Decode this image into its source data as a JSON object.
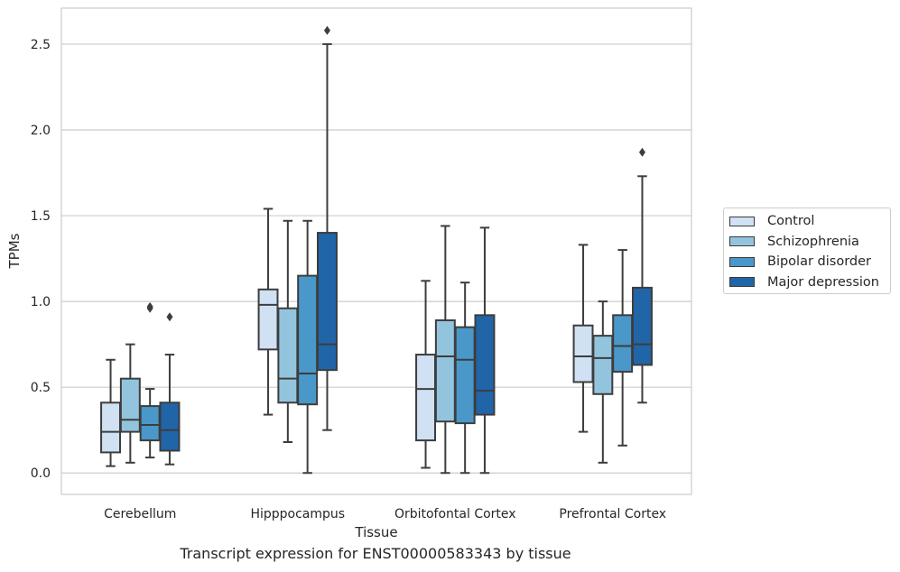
{
  "chart_data": {
    "type": "box",
    "title": "",
    "caption": "Transcript expression for ENST00000583343 by tissue",
    "xlabel": "Tissue",
    "ylabel": "TPMs",
    "ylim": [
      -0.125,
      2.71
    ],
    "yticks": [
      0.0,
      0.5,
      1.0,
      1.5,
      2.0,
      2.5
    ],
    "ytick_labels": [
      "0.0",
      "0.5",
      "1.0",
      "1.5",
      "2.0",
      "2.5"
    ],
    "categories": [
      "Cerebellum",
      "Hipppocampus",
      "Orbitofontal Cortex",
      "Prefrontal Cortex"
    ],
    "grid": "horizontal",
    "legend_position": "right",
    "series": [
      {
        "name": "Control",
        "color": "#cfe1f2",
        "boxes": [
          {
            "whislo": 0.04,
            "q1": 0.12,
            "med": 0.24,
            "q3": 0.41,
            "whishi": 0.66,
            "fliers": []
          },
          {
            "whislo": 0.34,
            "q1": 0.72,
            "med": 0.98,
            "q3": 1.07,
            "whishi": 1.54,
            "fliers": []
          },
          {
            "whislo": 0.03,
            "q1": 0.19,
            "med": 0.49,
            "q3": 0.69,
            "whishi": 1.12,
            "fliers": []
          },
          {
            "whislo": 0.24,
            "q1": 0.53,
            "med": 0.68,
            "q3": 0.86,
            "whishi": 1.33,
            "fliers": []
          }
        ]
      },
      {
        "name": "Schizophrenia",
        "color": "#93c4de",
        "boxes": [
          {
            "whislo": 0.06,
            "q1": 0.24,
            "med": 0.31,
            "q3": 0.55,
            "whishi": 0.75,
            "fliers": []
          },
          {
            "whislo": 0.18,
            "q1": 0.41,
            "med": 0.55,
            "q3": 0.96,
            "whishi": 1.47,
            "fliers": []
          },
          {
            "whislo": 0.0,
            "q1": 0.3,
            "med": 0.68,
            "q3": 0.89,
            "whishi": 1.44,
            "fliers": []
          },
          {
            "whislo": 0.06,
            "q1": 0.46,
            "med": 0.67,
            "q3": 0.8,
            "whishi": 1.0,
            "fliers": []
          }
        ]
      },
      {
        "name": "Bipolar disorder",
        "color": "#4a98c9",
        "boxes": [
          {
            "whislo": 0.09,
            "q1": 0.19,
            "med": 0.28,
            "q3": 0.39,
            "whishi": 0.49,
            "fliers": [
              0.96,
              0.97
            ]
          },
          {
            "whislo": 0.0,
            "q1": 0.4,
            "med": 0.58,
            "q3": 1.15,
            "whishi": 1.47,
            "fliers": []
          },
          {
            "whislo": 0.0,
            "q1": 0.29,
            "med": 0.66,
            "q3": 0.85,
            "whishi": 1.11,
            "fliers": []
          },
          {
            "whislo": 0.16,
            "q1": 0.59,
            "med": 0.74,
            "q3": 0.92,
            "whishi": 1.3,
            "fliers": []
          }
        ]
      },
      {
        "name": "Major depression",
        "color": "#2165a9",
        "boxes": [
          {
            "whislo": 0.05,
            "q1": 0.13,
            "med": 0.25,
            "q3": 0.41,
            "whishi": 0.69,
            "fliers": [
              0.91
            ]
          },
          {
            "whislo": 0.25,
            "q1": 0.6,
            "med": 0.75,
            "q3": 1.4,
            "whishi": 2.5,
            "fliers": [
              2.58
            ]
          },
          {
            "whislo": 0.0,
            "q1": 0.34,
            "med": 0.48,
            "q3": 0.92,
            "whishi": 1.43,
            "fliers": []
          },
          {
            "whislo": 0.41,
            "q1": 0.63,
            "med": 0.75,
            "q3": 1.08,
            "whishi": 1.73,
            "fliers": [
              1.87
            ]
          }
        ]
      }
    ]
  }
}
